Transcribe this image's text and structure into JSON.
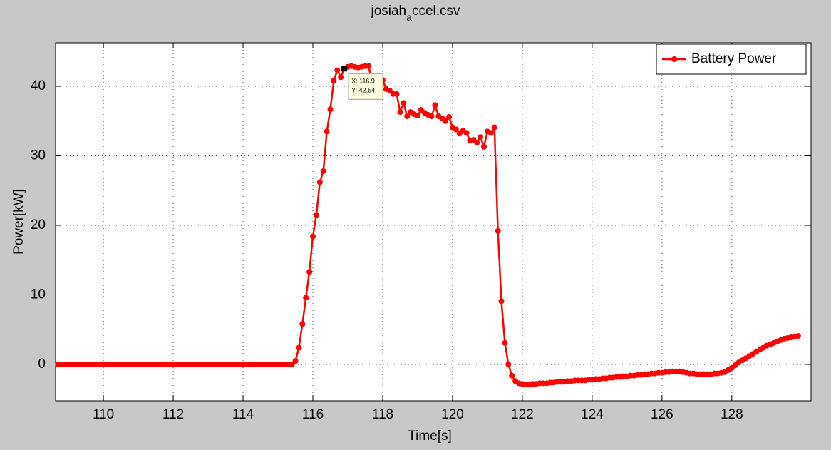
{
  "chart_data": {
    "type": "line",
    "title": [
      "josiah",
      "a",
      "ccel.csv"
    ],
    "x_label": "Time[s]",
    "y_label": "Power[kW]",
    "xlim": [
      108.63,
      130.27
    ],
    "xticks": [
      110,
      112,
      114,
      116,
      118,
      120,
      122,
      124,
      126,
      128
    ],
    "ylim": [
      -5.23,
      46.26
    ],
    "yticks": [
      0,
      10,
      20,
      30,
      40
    ],
    "grid": true,
    "legend": "northeast",
    "x": [
      108.7,
      108.8,
      108.9,
      109.0,
      109.1,
      109.2,
      109.3,
      109.4,
      109.5,
      109.6,
      109.7,
      109.8,
      109.9,
      110.0,
      110.1,
      110.2,
      110.3,
      110.4,
      110.5,
      110.6,
      110.7,
      110.8,
      110.9,
      111.0,
      111.1,
      111.2,
      111.3,
      111.4,
      111.5,
      111.6,
      111.7,
      111.8,
      111.9,
      112.0,
      112.1,
      112.2,
      112.3,
      112.4,
      112.5,
      112.6,
      112.7,
      112.8,
      112.9,
      113.0,
      113.1,
      113.2,
      113.3,
      113.4,
      113.5,
      113.6,
      113.7,
      113.8,
      113.9,
      114.0,
      114.1,
      114.2,
      114.3,
      114.4,
      114.5,
      114.6,
      114.7,
      114.8,
      114.9,
      115.0,
      115.1,
      115.2,
      115.3,
      115.4,
      115.5,
      115.6,
      115.7,
      115.8,
      115.9,
      116.0,
      116.1,
      116.2,
      116.3,
      116.4,
      116.5,
      116.6,
      116.7,
      116.8,
      116.9,
      117.0,
      117.1,
      117.2,
      117.3,
      117.4,
      117.5,
      117.6,
      117.7,
      117.8,
      117.9,
      118.0,
      118.1,
      118.2,
      118.3,
      118.4,
      118.5,
      118.6,
      118.7,
      118.8,
      118.9,
      119.0,
      119.1,
      119.2,
      119.3,
      119.4,
      119.5,
      119.6,
      119.7,
      119.8,
      119.9,
      120.0,
      120.1,
      120.2,
      120.3,
      120.4,
      120.5,
      120.6,
      120.7,
      120.8,
      120.9,
      121.0,
      121.1,
      121.2,
      121.3,
      121.4,
      121.5,
      121.6,
      121.7,
      121.8,
      121.9,
      122.0,
      122.1,
      122.2,
      122.3,
      122.4,
      122.5,
      122.6,
      122.7,
      122.8,
      122.9,
      123.0,
      123.1,
      123.2,
      123.3,
      123.4,
      123.5,
      123.6,
      123.7,
      123.8,
      123.9,
      124.0,
      124.1,
      124.2,
      124.3,
      124.4,
      124.5,
      124.6,
      124.7,
      124.8,
      124.9,
      125.0,
      125.1,
      125.2,
      125.3,
      125.4,
      125.5,
      125.6,
      125.7,
      125.8,
      125.9,
      126.0,
      126.1,
      126.2,
      126.3,
      126.4,
      126.5,
      126.6,
      126.7,
      126.8,
      126.9,
      127.0,
      127.1,
      127.2,
      127.3,
      127.4,
      127.5,
      127.6,
      127.7,
      127.8,
      127.9,
      128.0,
      128.1,
      128.2,
      128.3,
      128.4,
      128.5,
      128.6,
      128.7,
      128.8,
      128.9,
      129.0,
      129.1,
      129.2,
      129.3,
      129.4,
      129.5,
      129.6,
      129.7,
      129.8,
      129.9
    ],
    "series": [
      {
        "name": "Battery Power",
        "color": "#ff0000",
        "values": [
          0,
          0,
          0,
          0,
          0,
          0,
          0,
          0,
          0,
          0,
          0,
          0,
          0,
          0,
          0,
          0,
          0,
          0,
          0,
          0,
          0,
          0,
          0,
          0,
          0,
          0,
          0,
          0,
          0,
          0,
          0,
          0,
          0,
          0,
          0,
          0,
          0,
          0,
          0,
          0,
          0,
          0,
          0,
          0,
          0,
          0,
          0,
          0,
          0,
          0,
          0,
          0,
          0,
          0,
          0,
          0,
          0,
          0,
          0,
          0,
          0,
          0,
          0,
          0,
          0,
          0,
          0,
          0,
          0.5,
          2.4,
          5.8,
          9.6,
          13.3,
          18.4,
          21.5,
          26.2,
          27.8,
          33.5,
          36.7,
          40.8,
          42.3,
          41.3,
          42.54,
          42.8,
          42.9,
          42.8,
          42.7,
          42.8,
          42.9,
          42.9,
          40.2,
          39.9,
          40.5,
          40.9,
          39.6,
          39.4,
          38.9,
          38.9,
          36.3,
          37.6,
          35.7,
          36.3,
          36.0,
          35.8,
          36.6,
          36.2,
          35.9,
          35.7,
          37.3,
          35.7,
          35.4,
          35.0,
          35.6,
          34.1,
          33.8,
          33.2,
          33.6,
          33.3,
          32.2,
          32.3,
          31.9,
          32.7,
          31.3,
          33.5,
          33.3,
          34.1,
          19.2,
          9.1,
          3.1,
          0.0,
          -1.6,
          -2.4,
          -2.7,
          -2.8,
          -2.9,
          -2.9,
          -2.8,
          -2.8,
          -2.7,
          -2.7,
          -2.7,
          -2.6,
          -2.6,
          -2.5,
          -2.5,
          -2.5,
          -2.4,
          -2.4,
          -2.3,
          -2.3,
          -2.3,
          -2.3,
          -2.2,
          -2.2,
          -2.1,
          -2.1,
          -2.0,
          -2.0,
          -1.9,
          -1.9,
          -1.8,
          -1.8,
          -1.7,
          -1.7,
          -1.6,
          -1.6,
          -1.5,
          -1.5,
          -1.4,
          -1.4,
          -1.3,
          -1.3,
          -1.2,
          -1.2,
          -1.1,
          -1.1,
          -1.0,
          -1.0,
          -1.0,
          -1.1,
          -1.2,
          -1.3,
          -1.3,
          -1.4,
          -1.4,
          -1.4,
          -1.4,
          -1.4,
          -1.3,
          -1.3,
          -1.2,
          -1.1,
          -0.8,
          -0.5,
          -0.1,
          0.3,
          0.6,
          0.9,
          1.2,
          1.5,
          1.8,
          2.1,
          2.4,
          2.7,
          2.9,
          3.1,
          3.3,
          3.5,
          3.7,
          3.8,
          3.9,
          4.0,
          4.1
        ]
      }
    ],
    "annotation": {
      "x": 116.9,
      "y": 42.54,
      "labels": [
        "X: 116.9",
        "Y: 42.54"
      ]
    }
  }
}
